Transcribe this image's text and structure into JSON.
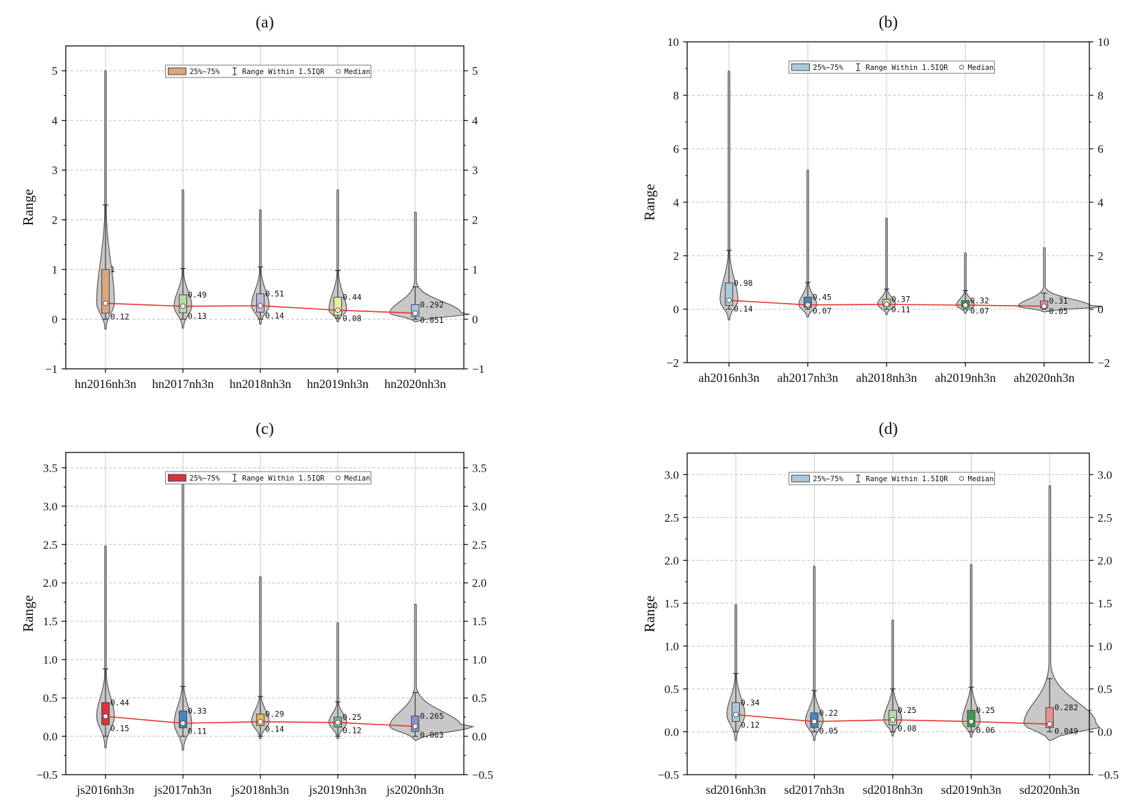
{
  "chart_data": [
    {
      "type": "violin",
      "title": "(a)",
      "xlabel": "",
      "ylabel": "Range",
      "ylim": [
        -1,
        5.5
      ],
      "yticks": [
        -1,
        0,
        1,
        2,
        3,
        4,
        5
      ],
      "box_color": "#d9a77e",
      "legend": {
        "box": "25%~75%",
        "whisker": "Range Within 1.5IQR",
        "median": "Median"
      },
      "categories": [
        "hn2016nh3n",
        "hn2017nh3n",
        "hn2018nh3n",
        "hn2019nh3n",
        "hn2020nh3n"
      ],
      "box_colors": [
        "#d9a77e",
        "#b7dba0",
        "#c5b5df",
        "#ecec9a",
        "#a9c3e6"
      ],
      "q1": [
        0.12,
        0.13,
        0.14,
        0.08,
        0.051
      ],
      "q3": [
        1,
        0.49,
        0.51,
        0.44,
        0.292
      ],
      "q1_labels": [
        "0.12",
        "0.13",
        "0.14",
        "0.08",
        "0.051"
      ],
      "q3_labels": [
        "1",
        "0.49",
        "0.51",
        "0.44",
        "0.292"
      ],
      "median": [
        0.32,
        0.26,
        0.27,
        0.18,
        0.12
      ],
      "whisker_low": [
        0,
        0,
        0,
        0.02,
        0
      ],
      "whisker_high": [
        2.3,
        1.02,
        1.05,
        0.98,
        0.65
      ],
      "min": [
        -0.2,
        -0.18,
        -0.1,
        -0.05,
        -0.05
      ],
      "max": [
        5.0,
        2.6,
        2.2,
        2.6,
        2.15
      ]
    },
    {
      "type": "violin",
      "title": "(b)",
      "xlabel": "",
      "ylabel": "Range",
      "ylim": [
        -2,
        10
      ],
      "yticks": [
        -2,
        0,
        2,
        4,
        6,
        8,
        10
      ],
      "box_color": "#a9c9dc",
      "legend": {
        "box": "25%~75%",
        "whisker": "Range Within 1.5IQR",
        "median": "Median"
      },
      "categories": [
        "ah2016nh3n",
        "ah2017nh3n",
        "ah2018nh3n",
        "ah2019nh3n",
        "ah2020nh3n"
      ],
      "box_colors": [
        "#a9c9dc",
        "#4a86c0",
        "#b7dba0",
        "#3c9a4c",
        "#e88f8f"
      ],
      "q1": [
        0.14,
        0.07,
        0.11,
        0.07,
        0.05
      ],
      "q3": [
        0.98,
        0.45,
        0.37,
        0.32,
        0.31
      ],
      "q1_labels": [
        "0.14",
        "0.07",
        "0.11",
        "0.07",
        "0.05"
      ],
      "q3_labels": [
        "0.98",
        "0.45",
        "0.37",
        "0.32",
        "0.31"
      ],
      "median": [
        0.33,
        0.16,
        0.18,
        0.15,
        0.11
      ],
      "whisker_low": [
        0,
        0,
        0,
        0,
        0
      ],
      "whisker_high": [
        2.2,
        1.0,
        0.75,
        0.7,
        0.6
      ],
      "min": [
        -0.4,
        -0.3,
        -0.2,
        -0.15,
        -0.1
      ],
      "max": [
        8.9,
        5.2,
        3.4,
        2.1,
        2.3
      ]
    },
    {
      "type": "violin",
      "title": "(c)",
      "xlabel": "",
      "ylabel": "Range",
      "ylim": [
        -0.5,
        3.7
      ],
      "yticks": [
        -0.5,
        0.0,
        0.5,
        1.0,
        1.5,
        2.0,
        2.5,
        3.0,
        3.5
      ],
      "box_color": "#d8343b",
      "legend": {
        "box": "25%~75%",
        "whisker": "Range Within 1.5IQR",
        "median": "Median"
      },
      "categories": [
        "js2016nh3n",
        "js2017nh3n",
        "js2018nh3n",
        "js2019nh3n",
        "js2020nh3n"
      ],
      "box_colors": [
        "#d8343b",
        "#4a86c0",
        "#e6b84a",
        "#7bbf7b",
        "#8793c4"
      ],
      "q1": [
        0.15,
        0.11,
        0.14,
        0.12,
        0.063
      ],
      "q3": [
        0.44,
        0.33,
        0.29,
        0.25,
        0.265
      ],
      "q1_labels": [
        "0.15",
        "0.11",
        "0.14",
        "0.12",
        "0.063"
      ],
      "q3_labels": [
        "0.44",
        "0.33",
        "0.29",
        "0.25",
        "0.265"
      ],
      "median": [
        0.26,
        0.17,
        0.19,
        0.18,
        0.13
      ],
      "whisker_low": [
        0,
        0,
        0,
        0,
        0
      ],
      "whisker_high": [
        0.88,
        0.65,
        0.52,
        0.45,
        0.57
      ],
      "min": [
        -0.15,
        -0.18,
        -0.03,
        -0.03,
        -0.05
      ],
      "max": [
        2.48,
        3.4,
        2.08,
        1.48,
        1.72
      ]
    },
    {
      "type": "violin",
      "title": "(d)",
      "xlabel": "",
      "ylabel": "Range",
      "ylim": [
        -0.5,
        3.25
      ],
      "yticks": [
        -0.5,
        0.0,
        0.5,
        1.0,
        1.5,
        2.0,
        2.5,
        3.0
      ],
      "box_color": "#a9c9dc",
      "legend": {
        "box": "25%~75%",
        "whisker": "Range Within 1.5IQR",
        "median": "Median"
      },
      "categories": [
        "sd2016nh3n",
        "sd2017nh3n",
        "sd2018nh3n",
        "sd2019nh3n",
        "sd2020nh3n"
      ],
      "box_colors": [
        "#a9c9dc",
        "#4a86c0",
        "#b7dba0",
        "#3c9a4c",
        "#e88f8f"
      ],
      "q1": [
        0.12,
        0.05,
        0.08,
        0.06,
        0.049
      ],
      "q3": [
        0.34,
        0.22,
        0.25,
        0.25,
        0.282
      ],
      "q1_labels": [
        "0.12",
        "0.05",
        "0.08",
        "0.06",
        "0.049"
      ],
      "q3_labels": [
        "0.34",
        "0.22",
        "0.25",
        "0.25",
        "0.282"
      ],
      "median": [
        0.2,
        0.12,
        0.14,
        0.12,
        0.09
      ],
      "whisker_low": [
        0,
        0,
        0,
        0,
        0
      ],
      "whisker_high": [
        0.68,
        0.48,
        0.5,
        0.52,
        0.62
      ],
      "min": [
        -0.1,
        -0.1,
        -0.05,
        -0.06,
        -0.1
      ],
      "max": [
        1.48,
        1.93,
        1.3,
        1.95,
        2.87
      ]
    }
  ]
}
